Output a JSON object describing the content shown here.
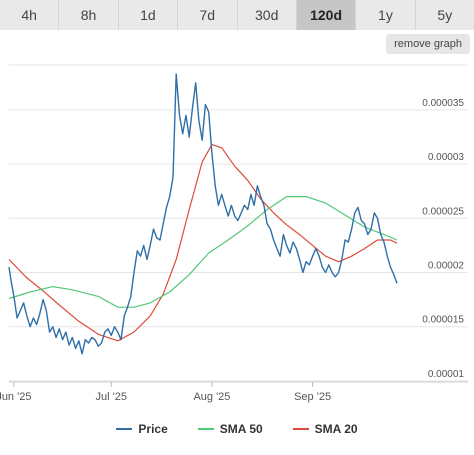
{
  "range_tabs": [
    "4h",
    "8h",
    "1d",
    "7d",
    "30d",
    "120d",
    "1y",
    "5y"
  ],
  "active_range": "120d",
  "remove_graph_label": "remove graph",
  "colors": {
    "price": "#2f6fa8",
    "sma50": "#52c878",
    "sma20": "#e04a3c",
    "grid": "#e6e6e6"
  },
  "chart_data": {
    "type": "line",
    "x_tick_labels": [
      "Jun '25",
      "Jul '25",
      "Aug '25",
      "Sep '25"
    ],
    "x_tick_days": [
      0,
      30,
      61,
      92
    ],
    "x_range_days": [
      -1.5,
      122
    ],
    "y_ticks": [
      1e-05,
      1.5e-05,
      2e-05,
      2.5e-05,
      3e-05,
      3.5e-05
    ],
    "y_tick_labels": [
      "0.00001",
      "0.000015",
      "0.00002",
      "0.000025",
      "0.00003",
      "0.000035"
    ],
    "ylim": [
      9.9e-06,
      3.96e-05
    ],
    "grid": true,
    "legend_position": "bottom",
    "series": [
      {
        "name": "Price",
        "color": "#2f6fa8",
        "points": [
          [
            -1.5,
            2.05e-05
          ],
          [
            -1,
            1.95e-05
          ],
          [
            0,
            1.78e-05
          ],
          [
            1,
            1.58e-05
          ],
          [
            2,
            1.65e-05
          ],
          [
            3,
            1.72e-05
          ],
          [
            4,
            1.6e-05
          ],
          [
            5,
            1.5e-05
          ],
          [
            6,
            1.58e-05
          ],
          [
            7,
            1.52e-05
          ],
          [
            8,
            1.62e-05
          ],
          [
            9,
            1.75e-05
          ],
          [
            10,
            1.65e-05
          ],
          [
            11,
            1.45e-05
          ],
          [
            12,
            1.5e-05
          ],
          [
            13,
            1.4e-05
          ],
          [
            14,
            1.48e-05
          ],
          [
            15,
            1.38e-05
          ],
          [
            16,
            1.45e-05
          ],
          [
            17,
            1.33e-05
          ],
          [
            18,
            1.4e-05
          ],
          [
            19,
            1.3e-05
          ],
          [
            20,
            1.37e-05
          ],
          [
            21,
            1.25e-05
          ],
          [
            22,
            1.38e-05
          ],
          [
            23,
            1.35e-05
          ],
          [
            24,
            1.4e-05
          ],
          [
            25,
            1.38e-05
          ],
          [
            26,
            1.32e-05
          ],
          [
            27,
            1.35e-05
          ],
          [
            28,
            1.45e-05
          ],
          [
            29,
            1.48e-05
          ],
          [
            30,
            1.42e-05
          ],
          [
            31,
            1.5e-05
          ],
          [
            32,
            1.45e-05
          ],
          [
            33,
            1.38e-05
          ],
          [
            34,
            1.6e-05
          ],
          [
            35,
            1.68e-05
          ],
          [
            36,
            1.78e-05
          ],
          [
            37,
            2e-05
          ],
          [
            38,
            2.2e-05
          ],
          [
            39,
            2.15e-05
          ],
          [
            40,
            2.25e-05
          ],
          [
            41,
            2.12e-05
          ],
          [
            42,
            2.25e-05
          ],
          [
            43,
            2.4e-05
          ],
          [
            44,
            2.32e-05
          ],
          [
            45,
            2.3e-05
          ],
          [
            46,
            2.45e-05
          ],
          [
            47,
            2.6e-05
          ],
          [
            48,
            2.7e-05
          ],
          [
            49,
            2.88e-05
          ],
          [
            50,
            3.83e-05
          ],
          [
            51,
            3.45e-05
          ],
          [
            52,
            3.28e-05
          ],
          [
            53,
            3.45e-05
          ],
          [
            54,
            3.25e-05
          ],
          [
            55,
            3.52e-05
          ],
          [
            56,
            3.75e-05
          ],
          [
            57,
            3.4e-05
          ],
          [
            58,
            3.22e-05
          ],
          [
            59,
            3.55e-05
          ],
          [
            60,
            3.48e-05
          ],
          [
            61,
            3.1e-05
          ],
          [
            62,
            2.8e-05
          ],
          [
            63,
            2.62e-05
          ],
          [
            64,
            2.72e-05
          ],
          [
            65,
            2.62e-05
          ],
          [
            66,
            2.52e-05
          ],
          [
            67,
            2.62e-05
          ],
          [
            68,
            2.52e-05
          ],
          [
            69,
            2.48e-05
          ],
          [
            70,
            2.55e-05
          ],
          [
            71,
            2.62e-05
          ],
          [
            72,
            2.58e-05
          ],
          [
            73,
            2.72e-05
          ],
          [
            74,
            2.62e-05
          ],
          [
            75,
            2.8e-05
          ],
          [
            76,
            2.7e-05
          ],
          [
            77,
            2.62e-05
          ],
          [
            78,
            2.45e-05
          ],
          [
            79,
            2.4e-05
          ],
          [
            80,
            2.3e-05
          ],
          [
            81,
            2.22e-05
          ],
          [
            82,
            2.15e-05
          ],
          [
            83,
            2.35e-05
          ],
          [
            84,
            2.25e-05
          ],
          [
            85,
            2.18e-05
          ],
          [
            86,
            2.28e-05
          ],
          [
            87,
            2.22e-05
          ],
          [
            88,
            2.12e-05
          ],
          [
            89,
            2e-05
          ],
          [
            90,
            2.1e-05
          ],
          [
            91,
            2.07e-05
          ],
          [
            92,
            2.15e-05
          ],
          [
            93,
            2.22e-05
          ],
          [
            94,
            2.15e-05
          ],
          [
            95,
            2.05e-05
          ],
          [
            96,
            2e-05
          ],
          [
            97,
            2.07e-05
          ],
          [
            98,
            2e-05
          ],
          [
            99,
            1.96e-05
          ],
          [
            100,
            2e-05
          ],
          [
            101,
            2.12e-05
          ],
          [
            102,
            2.3e-05
          ],
          [
            103,
            2.28e-05
          ],
          [
            104,
            2.4e-05
          ],
          [
            105,
            2.55e-05
          ],
          [
            106,
            2.6e-05
          ],
          [
            107,
            2.48e-05
          ],
          [
            108,
            2.45e-05
          ],
          [
            109,
            2.35e-05
          ],
          [
            110,
            2.4e-05
          ],
          [
            111,
            2.55e-05
          ],
          [
            112,
            2.5e-05
          ],
          [
            113,
            2.35e-05
          ],
          [
            114,
            2.28e-05
          ],
          [
            115,
            2.15e-05
          ],
          [
            116,
            2.05e-05
          ],
          [
            117,
            1.98e-05
          ],
          [
            118,
            1.9e-05
          ]
        ]
      },
      {
        "name": "SMA 50",
        "color": "#52c878",
        "points": [
          [
            -1.5,
            1.76e-05
          ],
          [
            5,
            1.82e-05
          ],
          [
            12,
            1.87e-05
          ],
          [
            18,
            1.84e-05
          ],
          [
            26,
            1.78e-05
          ],
          [
            32,
            1.68e-05
          ],
          [
            37,
            1.68e-05
          ],
          [
            42,
            1.72e-05
          ],
          [
            48,
            1.82e-05
          ],
          [
            54,
            1.98e-05
          ],
          [
            60,
            2.18e-05
          ],
          [
            66,
            2.3e-05
          ],
          [
            72,
            2.43e-05
          ],
          [
            78,
            2.58e-05
          ],
          [
            84,
            2.7e-05
          ],
          [
            90,
            2.7e-05
          ],
          [
            96,
            2.64e-05
          ],
          [
            102,
            2.53e-05
          ],
          [
            108,
            2.42e-05
          ],
          [
            114,
            2.35e-05
          ],
          [
            118,
            2.3e-05
          ]
        ]
      },
      {
        "name": "SMA 20",
        "color": "#e04a3c",
        "points": [
          [
            -1.5,
            2.12e-05
          ],
          [
            4,
            1.95e-05
          ],
          [
            9,
            1.83e-05
          ],
          [
            14,
            1.7e-05
          ],
          [
            20,
            1.55e-05
          ],
          [
            26,
            1.43e-05
          ],
          [
            32,
            1.37e-05
          ],
          [
            37,
            1.45e-05
          ],
          [
            42,
            1.6e-05
          ],
          [
            46,
            1.8e-05
          ],
          [
            50,
            2.12e-05
          ],
          [
            54,
            2.58e-05
          ],
          [
            58,
            3.02e-05
          ],
          [
            61,
            3.18e-05
          ],
          [
            64,
            3.15e-05
          ],
          [
            68,
            2.98e-05
          ],
          [
            72,
            2.85e-05
          ],
          [
            76,
            2.68e-05
          ],
          [
            80,
            2.55e-05
          ],
          [
            84,
            2.44e-05
          ],
          [
            88,
            2.35e-05
          ],
          [
            92,
            2.25e-05
          ],
          [
            96,
            2.15e-05
          ],
          [
            100,
            2.1e-05
          ],
          [
            104,
            2.15e-05
          ],
          [
            108,
            2.22e-05
          ],
          [
            112,
            2.3e-05
          ],
          [
            116,
            2.3e-05
          ],
          [
            118,
            2.27e-05
          ]
        ]
      }
    ]
  },
  "legend": [
    {
      "label": "Price",
      "color": "#2f6fa8"
    },
    {
      "label": "SMA 50",
      "color": "#52c878"
    },
    {
      "label": "SMA 20",
      "color": "#e04a3c"
    }
  ]
}
